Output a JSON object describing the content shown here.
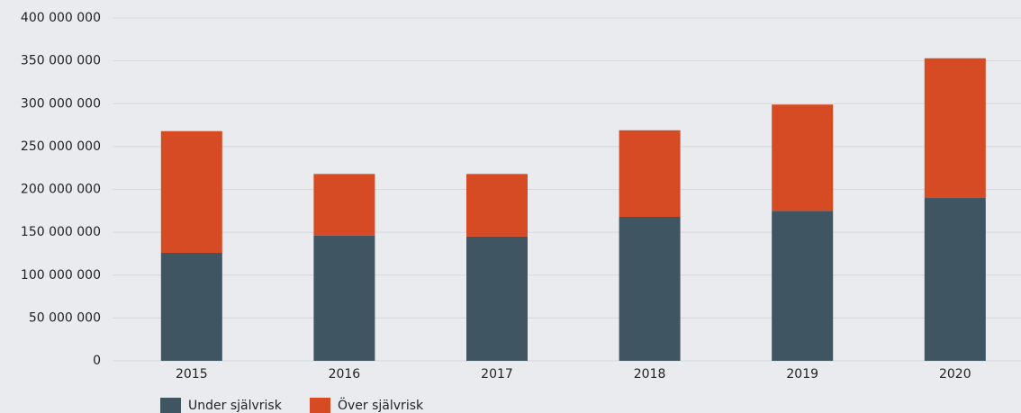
{
  "chart_data": {
    "type": "stacked_bar",
    "categories": [
      "2015",
      "2016",
      "2017",
      "2018",
      "2019",
      "2020"
    ],
    "series": [
      {
        "name": "Under självrisk",
        "color": "#3f5562",
        "values": [
          126000000,
          146000000,
          145000000,
          168000000,
          175000000,
          190000000
        ]
      },
      {
        "name": "Över självrisk",
        "color": "#d64a24",
        "values": [
          142000000,
          72000000,
          73000000,
          101000000,
          124000000,
          163000000
        ]
      }
    ],
    "ylim": [
      0,
      400000000
    ],
    "yticks": [
      0,
      {
        "value": 50000000,
        "label": "50 000 000"
      },
      {
        "value": 100000000,
        "label": "100 000 000"
      },
      {
        "value": 150000000,
        "label": "150 000 000"
      },
      {
        "value": 200000000,
        "label": "200 000 000"
      },
      {
        "value": 250000000,
        "label": "250 000 000"
      },
      {
        "value": 300000000,
        "label": "300 000 000"
      },
      {
        "value": 350000000,
        "label": "350 000 000"
      },
      {
        "value": 400000000,
        "label": "400 000 000"
      }
    ],
    "grid": true,
    "legend": "bottom-left"
  }
}
